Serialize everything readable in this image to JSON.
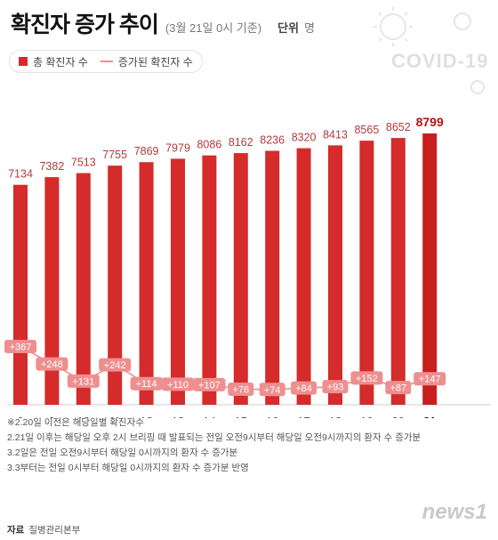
{
  "header": {
    "title": "확진자 증가 추이",
    "subtitle": "(3월 21일 0시 기준)",
    "unit_label": "단위",
    "unit_value": "명"
  },
  "decoration": {
    "text": "COVID-19"
  },
  "legend": {
    "bar_label": "총 확진자 수",
    "line_label": "증가된 확진자 수"
  },
  "colors": {
    "bar": "#d52b2b",
    "bar_last": "#c81e1e",
    "line": "#f08a8a",
    "label_bg": "#ee8f8f",
    "value_text": "#b33a3a"
  },
  "chart_data": {
    "type": "bar",
    "categories": [
      "8",
      "9",
      "10",
      "11",
      "12",
      "13",
      "14",
      "15",
      "16",
      "17",
      "18",
      "19",
      "20",
      "21"
    ],
    "series": [
      {
        "name": "총 확진자 수",
        "type": "bar",
        "values": [
          7134,
          7382,
          7513,
          7755,
          7869,
          7979,
          8086,
          8162,
          8236,
          8320,
          8413,
          8565,
          8652,
          8799
        ]
      },
      {
        "name": "증가된 확진자 수",
        "type": "line",
        "values": [
          367,
          248,
          131,
          242,
          114,
          110,
          107,
          76,
          74,
          84,
          93,
          152,
          87,
          147
        ],
        "labels": [
          "+367",
          "+248",
          "+131",
          "+242",
          "+114",
          "+110",
          "+107",
          "+76",
          "+74",
          "+84",
          "+93",
          "+152",
          "+87",
          "+147"
        ]
      }
    ],
    "ylim": [
      0,
      9000
    ],
    "grid": false,
    "legend_position": "top-left"
  },
  "notes": [
    "※2.20일 이전은 해당일별 확진자수",
    "2.21일 이후는 해당일 오후 2시 브리핑 때 발표되는 전일 오전9시부터 해당일 오전9시까지의 환자 수 증가분",
    "3.2일은 전일 오전9시부터 해당일 0시까지의 환자 수 증가분",
    "3.3부터는 전일 0시부터 해당일 0시까지의 환자 수 증가분 반영"
  ],
  "source": {
    "label": "자료",
    "value": "질병관리본부"
  },
  "logo": "news1"
}
